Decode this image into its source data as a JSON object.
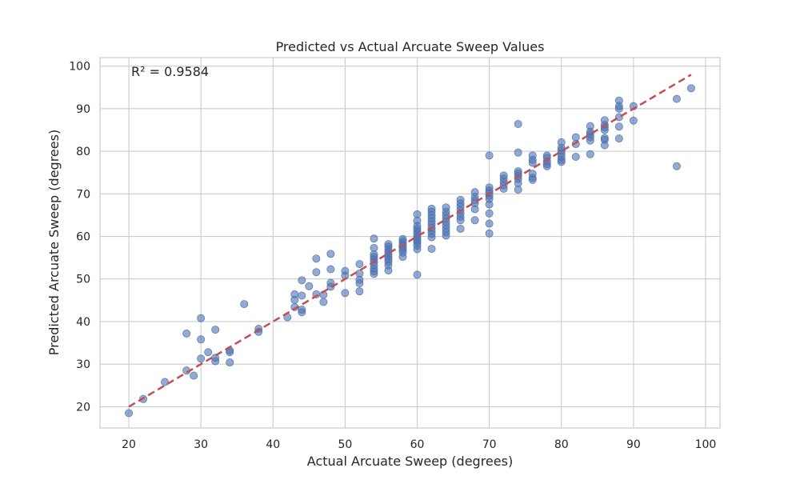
{
  "chart_data": {
    "type": "scatter",
    "title": "Predicted vs Actual Arcuate Sweep Values",
    "xlabel": "Actual Arcuate Sweep (degrees)",
    "ylabel": "Predicted Arcuate Sweep (degrees)",
    "xlim": [
      16,
      102
    ],
    "ylim": [
      15,
      102
    ],
    "xticks": [
      20,
      30,
      40,
      50,
      60,
      70,
      80,
      90,
      100
    ],
    "yticks": [
      20,
      30,
      40,
      50,
      60,
      70,
      80,
      90,
      100
    ],
    "grid": true,
    "annotation": "R² = 0.9584",
    "point_color": "#4c72b0",
    "line_color": "#c44e52",
    "reference_line": {
      "x": [
        20,
        98
      ],
      "y": [
        20,
        98
      ],
      "style": "dashed"
    },
    "points": [
      [
        20,
        18.5
      ],
      [
        22,
        21.8
      ],
      [
        25,
        25.8
      ],
      [
        28,
        28.5
      ],
      [
        28,
        37.2
      ],
      [
        29,
        27.3
      ],
      [
        30,
        31.3
      ],
      [
        30,
        35.8
      ],
      [
        30,
        40.8
      ],
      [
        31,
        32.8
      ],
      [
        32,
        31.5
      ],
      [
        32,
        30.7
      ],
      [
        32,
        38.1
      ],
      [
        34,
        33.2
      ],
      [
        34,
        32.8
      ],
      [
        34,
        30.4
      ],
      [
        36,
        44.1
      ],
      [
        38,
        37.6
      ],
      [
        38,
        38.3
      ],
      [
        42,
        41.0
      ],
      [
        43,
        46.4
      ],
      [
        43,
        45.1
      ],
      [
        43,
        43.4
      ],
      [
        44,
        49.7
      ],
      [
        44,
        46.1
      ],
      [
        44,
        42.8
      ],
      [
        44,
        42.2
      ],
      [
        45,
        48.3
      ],
      [
        46,
        54.8
      ],
      [
        46,
        51.6
      ],
      [
        46,
        46.4
      ],
      [
        47,
        46.3
      ],
      [
        47,
        44.6
      ],
      [
        48,
        55.9
      ],
      [
        48,
        52.3
      ],
      [
        48,
        49.1
      ],
      [
        48,
        48.2
      ],
      [
        50,
        51.9
      ],
      [
        50,
        50.8
      ],
      [
        50,
        46.7
      ],
      [
        52,
        53.5
      ],
      [
        52,
        51.3
      ],
      [
        52,
        49.8
      ],
      [
        52,
        49.0
      ],
      [
        52,
        47.1
      ],
      [
        54,
        59.5
      ],
      [
        54,
        57.3
      ],
      [
        54,
        55.8
      ],
      [
        54,
        55.2
      ],
      [
        54,
        54.6
      ],
      [
        54,
        54.0
      ],
      [
        54,
        53.2
      ],
      [
        54,
        52.4
      ],
      [
        54,
        51.8
      ],
      [
        54,
        51.2
      ],
      [
        56,
        58.2
      ],
      [
        56,
        57.6
      ],
      [
        56,
        57.0
      ],
      [
        56,
        56.4
      ],
      [
        56,
        55.8
      ],
      [
        56,
        55.2
      ],
      [
        56,
        54.6
      ],
      [
        56,
        54.0
      ],
      [
        56,
        53.2
      ],
      [
        56,
        52.0
      ],
      [
        58,
        59.4
      ],
      [
        58,
        58.9
      ],
      [
        58,
        58.4
      ],
      [
        58,
        57.9
      ],
      [
        58,
        57.3
      ],
      [
        58,
        56.8
      ],
      [
        58,
        56.2
      ],
      [
        58,
        55.2
      ],
      [
        60,
        65.2
      ],
      [
        60,
        63.7
      ],
      [
        60,
        62.5
      ],
      [
        60,
        61.8
      ],
      [
        60,
        61.2
      ],
      [
        60,
        60.6
      ],
      [
        60,
        60.0
      ],
      [
        60,
        59.5
      ],
      [
        60,
        59.0
      ],
      [
        60,
        58.5
      ],
      [
        60,
        57.8
      ],
      [
        60,
        57.0
      ],
      [
        60,
        51.0
      ],
      [
        62,
        66.5
      ],
      [
        62,
        65.8
      ],
      [
        62,
        65.0
      ],
      [
        62,
        64.3
      ],
      [
        62,
        63.5
      ],
      [
        62,
        62.8
      ],
      [
        62,
        62.0
      ],
      [
        62,
        61.3
      ],
      [
        62,
        60.6
      ],
      [
        62,
        59.8
      ],
      [
        62,
        57.1
      ],
      [
        64,
        66.8
      ],
      [
        64,
        65.8
      ],
      [
        64,
        65.0
      ],
      [
        64,
        64.2
      ],
      [
        64,
        63.4
      ],
      [
        64,
        62.6
      ],
      [
        64,
        61.8
      ],
      [
        64,
        61.0
      ],
      [
        64,
        60.2
      ],
      [
        66,
        68.6
      ],
      [
        66,
        67.8
      ],
      [
        66,
        67.0
      ],
      [
        66,
        66.2
      ],
      [
        66,
        65.4
      ],
      [
        66,
        64.6
      ],
      [
        66,
        63.8
      ],
      [
        66,
        61.8
      ],
      [
        68,
        70.4
      ],
      [
        68,
        69.3
      ],
      [
        68,
        68.5
      ],
      [
        68,
        67.8
      ],
      [
        68,
        66.4
      ],
      [
        68,
        63.8
      ],
      [
        70,
        79.0
      ],
      [
        70,
        71.5
      ],
      [
        70,
        70.8
      ],
      [
        70,
        70.2
      ],
      [
        70,
        69.5
      ],
      [
        70,
        68.8
      ],
      [
        70,
        67.5
      ],
      [
        70,
        65.4
      ],
      [
        70,
        63.0
      ],
      [
        70,
        60.7
      ],
      [
        72,
        74.3
      ],
      [
        72,
        73.6
      ],
      [
        72,
        72.8
      ],
      [
        72,
        72.0
      ],
      [
        72,
        71.2
      ],
      [
        74,
        86.4
      ],
      [
        74,
        79.7
      ],
      [
        74,
        75.3
      ],
      [
        74,
        74.8
      ],
      [
        74,
        74.2
      ],
      [
        74,
        73.5
      ],
      [
        74,
        72.5
      ],
      [
        74,
        71.0
      ],
      [
        76,
        79.0
      ],
      [
        76,
        78.0
      ],
      [
        76,
        77.3
      ],
      [
        76,
        74.7
      ],
      [
        76,
        73.8
      ],
      [
        76,
        73.3
      ],
      [
        78,
        79.0
      ],
      [
        78,
        78.5
      ],
      [
        78,
        77.6
      ],
      [
        78,
        77.0
      ],
      [
        78,
        76.5
      ],
      [
        80,
        82.1
      ],
      [
        80,
        80.8
      ],
      [
        80,
        80.2
      ],
      [
        80,
        79.5
      ],
      [
        80,
        78.7
      ],
      [
        80,
        78.0
      ],
      [
        80,
        77.5
      ],
      [
        82,
        83.3
      ],
      [
        82,
        81.7
      ],
      [
        82,
        78.7
      ],
      [
        84,
        85.9
      ],
      [
        84,
        84.6
      ],
      [
        84,
        84.0
      ],
      [
        84,
        83.3
      ],
      [
        84,
        82.5
      ],
      [
        84,
        79.3
      ],
      [
        86,
        87.3
      ],
      [
        86,
        86.2
      ],
      [
        86,
        85.6
      ],
      [
        86,
        85.0
      ],
      [
        86,
        83.1
      ],
      [
        86,
        82.7
      ],
      [
        86,
        81.4
      ],
      [
        88,
        91.9
      ],
      [
        88,
        90.6
      ],
      [
        88,
        90.0
      ],
      [
        88,
        88.0
      ],
      [
        88,
        85.8
      ],
      [
        88,
        83.0
      ],
      [
        90,
        90.6
      ],
      [
        90,
        87.2
      ],
      [
        96,
        92.3
      ],
      [
        96,
        76.5
      ],
      [
        98,
        94.8
      ]
    ]
  }
}
